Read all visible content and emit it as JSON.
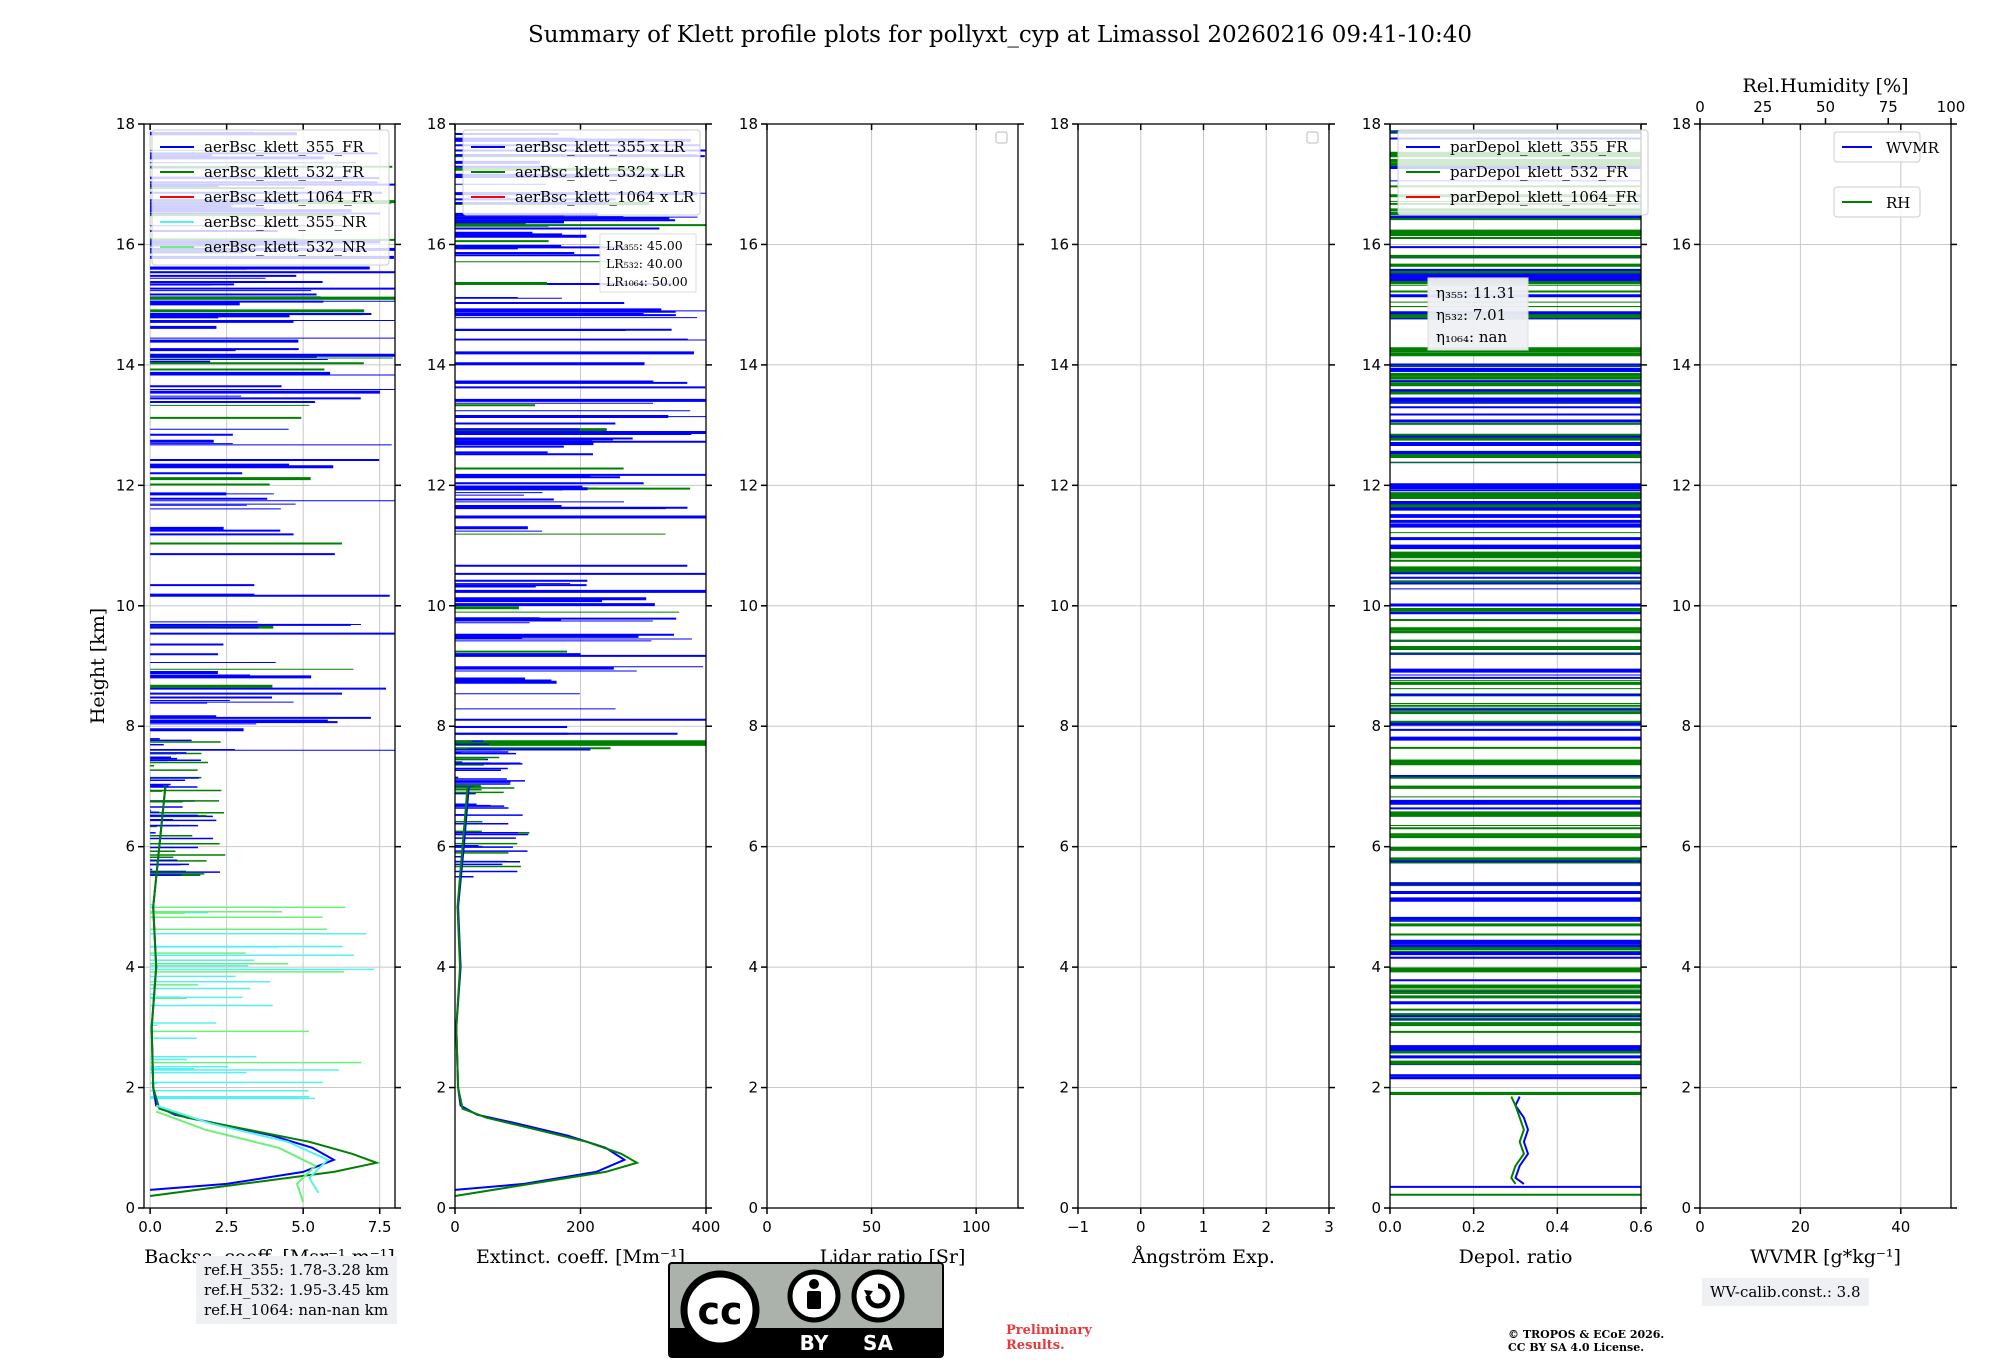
{
  "figure": {
    "title": "Summary of Klett profile plots for pollyxt_cyp at Limassol 20260216 09:41-10:40",
    "ylabel": "Height [km]",
    "ref_heights": [
      "ref.H_355: 1.78-3.28 km",
      "ref.H_532: 1.95-3.45 km",
      "ref.H_1064: nan-nan km"
    ],
    "wv_calib": "WV-calib.const.: 3.8",
    "preliminary": [
      "Preliminary",
      "Results."
    ],
    "copyright": [
      "© TROPOS & ECoE 2026.",
      "CC BY SA 4.0 License."
    ],
    "cc_badge": {
      "left": "BY",
      "right": "SA"
    }
  },
  "colors": {
    "c355": "#0000ff",
    "c532": "#008000",
    "c1064": "#ff0000",
    "c355nr": "#56f0f0",
    "c532nr": "#6cf07a"
  },
  "chart_data": [
    {
      "id": "bsc",
      "type": "line",
      "xlabel": "Backsc. coeff. [Msr⁻¹ m⁻¹]",
      "xlim": [
        -0.2,
        8.0
      ],
      "ylim": [
        0,
        18
      ],
      "xticks": [
        0,
        2.5,
        5,
        7.5
      ],
      "xticklabels": [
        "0.0",
        "2.5",
        "5.0",
        "7.5"
      ],
      "yticks": [
        0,
        2,
        4,
        6,
        8,
        10,
        12,
        14,
        16,
        18
      ],
      "legend": [
        "aerBsc_klett_355_FR",
        "aerBsc_klett_532_FR",
        "aerBsc_klett_1064_FR",
        "aerBsc_klett_355_NR",
        "aerBsc_klett_532_NR"
      ],
      "legend_colors": [
        "#0000ff",
        "#008000",
        "#ff0000",
        "#56f0f0",
        "#6cf07a"
      ],
      "series": [
        {
          "name": "aerBsc_klett_355_FR",
          "color": "#0000ff",
          "h": [
            0.3,
            0.4,
            0.6,
            0.8,
            1.0,
            1.2,
            1.4,
            1.55,
            1.7,
            2.0,
            3.0,
            4.0,
            5.0,
            6.0,
            7.0
          ],
          "v": [
            0.0,
            2.5,
            5.0,
            6.0,
            5.3,
            4.0,
            2.2,
            0.8,
            0.2,
            0.1,
            0.05,
            0.2,
            0.1,
            0.3,
            0.5
          ]
        },
        {
          "name": "aerBsc_klett_532_FR",
          "color": "#008000",
          "h": [
            0.2,
            0.4,
            0.6,
            0.75,
            0.9,
            1.1,
            1.3,
            1.5,
            1.65,
            2.0,
            3.0,
            4.0,
            5.0,
            6.0,
            7.0
          ],
          "v": [
            0.0,
            3.0,
            6.0,
            7.4,
            6.6,
            5.2,
            3.2,
            1.2,
            0.3,
            0.1,
            0.05,
            0.2,
            0.1,
            0.3,
            0.5
          ]
        },
        {
          "name": "aerBsc_klett_355_NR",
          "color": "#56f0f0",
          "h": [
            0.25,
            0.5,
            0.8,
            1.1,
            1.4,
            1.7
          ],
          "v": [
            5.5,
            5.2,
            5.8,
            4.5,
            2.0,
            0.2
          ]
        },
        {
          "name": "aerBsc_klett_532_NR",
          "color": "#6cf07a",
          "h": [
            0.1,
            0.4,
            0.7,
            1.0,
            1.3,
            1.6
          ],
          "v": [
            5.0,
            4.8,
            5.4,
            4.2,
            1.8,
            0.2
          ]
        }
      ]
    },
    {
      "id": "ext",
      "type": "line",
      "xlabel": "Extinct. coeff. [Mm⁻¹]",
      "xlim": [
        0,
        400
      ],
      "ylim": [
        0,
        18
      ],
      "xticks": [
        0,
        200,
        400
      ],
      "xticklabels": [
        "0",
        "200",
        "400"
      ],
      "yticks": [
        0,
        2,
        4,
        6,
        8,
        10,
        12,
        14,
        16,
        18
      ],
      "legend": [
        "aerBsc_klett_355 x LR",
        "aerBsc_klett_532 x LR",
        "aerBsc_klett_1064 x LR"
      ],
      "legend_colors": [
        "#0000ff",
        "#008000",
        "#ff0000"
      ],
      "lidar_ratios": [
        "LR₃₅₅: 45.00",
        "LR₅₃₂: 40.00",
        "LR₁₀₆₄: 50.00"
      ],
      "series": [
        {
          "name": "aerBsc_klett_355 x LR",
          "color": "#0000ff",
          "h": [
            0.3,
            0.4,
            0.6,
            0.8,
            1.0,
            1.2,
            1.4,
            1.55,
            1.7,
            2.0,
            3.0,
            4.0,
            5.0,
            6.0,
            7.0
          ],
          "v": [
            0,
            110,
            225,
            270,
            240,
            180,
            100,
            35,
            9,
            5,
            2,
            9,
            5,
            14,
            22
          ]
        },
        {
          "name": "aerBsc_klett_532 x LR",
          "color": "#008000",
          "h": [
            0.2,
            0.4,
            0.6,
            0.75,
            0.9,
            1.1,
            1.3,
            1.5,
            1.65,
            2.0,
            3.0,
            4.0,
            5.0,
            6.0,
            7.0
          ],
          "v": [
            0,
            120,
            240,
            290,
            265,
            210,
            130,
            50,
            12,
            5,
            2,
            8,
            4,
            12,
            20
          ]
        }
      ]
    },
    {
      "id": "lr",
      "type": "line",
      "xlabel": "Lidar ratio [Sr]",
      "xlim": [
        0,
        120
      ],
      "ylim": [
        0,
        18
      ],
      "xticks": [
        0,
        50,
        100
      ],
      "xticklabels": [
        "0",
        "50",
        "100"
      ],
      "yticks": [
        0,
        2,
        4,
        6,
        8,
        10,
        12,
        14,
        16,
        18
      ],
      "series": []
    },
    {
      "id": "ang",
      "type": "line",
      "xlabel": "Ångström Exp.",
      "xlim": [
        -1,
        3
      ],
      "ylim": [
        0,
        18
      ],
      "xticks": [
        -1,
        0,
        1,
        2,
        3
      ],
      "xticklabels": [
        "−1",
        "0",
        "1",
        "2",
        "3"
      ],
      "yticks": [
        0,
        2,
        4,
        6,
        8,
        10,
        12,
        14,
        16,
        18
      ],
      "series": []
    },
    {
      "id": "dep",
      "type": "line",
      "xlabel": "Depol. ratio",
      "xlim": [
        0,
        0.6
      ],
      "ylim": [
        0,
        18
      ],
      "xticks": [
        0,
        0.2,
        0.4,
        0.6
      ],
      "xticklabels": [
        "0.0",
        "0.2",
        "0.4",
        "0.6"
      ],
      "yticks": [
        0,
        2,
        4,
        6,
        8,
        10,
        12,
        14,
        16,
        18
      ],
      "legend": [
        "parDepol_klett_355_FR",
        "parDepol_klett_532_FR",
        "parDepol_klett_1064_FR"
      ],
      "legend_colors": [
        "#0000ff",
        "#008000",
        "#ff0000"
      ],
      "eta": [
        "η₃₅₅: 11.31",
        "η₅₃₂: 7.01",
        "η₁₀₆₄: nan"
      ],
      "series": [
        {
          "name": "parDepol_klett_355_FR",
          "color": "#0000ff",
          "h": [
            0.4,
            0.5,
            0.7,
            0.9,
            1.1,
            1.3,
            1.5,
            1.7,
            1.85
          ],
          "v": [
            0.32,
            0.3,
            0.31,
            0.33,
            0.32,
            0.33,
            0.32,
            0.3,
            0.31
          ]
        },
        {
          "name": "parDepol_klett_532_FR",
          "color": "#008000",
          "h": [
            0.4,
            0.5,
            0.7,
            0.9,
            1.1,
            1.3,
            1.5,
            1.7,
            1.85
          ],
          "v": [
            0.3,
            0.29,
            0.3,
            0.32,
            0.31,
            0.32,
            0.31,
            0.3,
            0.29
          ]
        }
      ]
    },
    {
      "id": "wv",
      "type": "line",
      "xlabel": "WVMR [g*kg⁻¹]",
      "xlim": [
        0,
        50
      ],
      "ylim": [
        0,
        18
      ],
      "xticks": [
        0,
        20,
        40
      ],
      "xticklabels": [
        "0",
        "20",
        "40"
      ],
      "yticks": [
        0,
        2,
        4,
        6,
        8,
        10,
        12,
        14,
        16,
        18
      ],
      "top_xlabel": "Rel.Humidity [%]",
      "top_xlim": [
        0,
        100
      ],
      "top_xticks": [
        0,
        25,
        50,
        75,
        100
      ],
      "top_xticklabels": [
        "0",
        "25",
        "50",
        "75",
        "100"
      ],
      "legend": [
        "WVMR",
        "RH"
      ],
      "legend_colors": [
        "#0000ff",
        "#008000"
      ],
      "series": []
    }
  ]
}
